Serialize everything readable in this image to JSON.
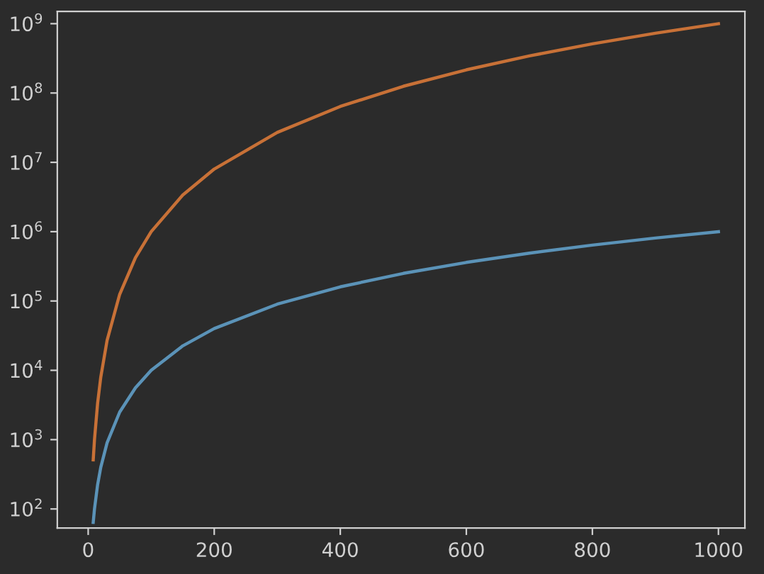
{
  "chart_data": {
    "type": "line",
    "log": "y",
    "grid": false,
    "legend": false,
    "marker": "none",
    "line_style": "solid",
    "xlim": [
      -49,
      1042
    ],
    "ylim": [
      53,
      1500000000
    ],
    "xticks": [
      0,
      200,
      400,
      600,
      800,
      1000
    ],
    "yticks": [
      {
        "value": 100,
        "label": "10$^{2}$"
      },
      {
        "value": 1000,
        "label": "10$^{3}$"
      },
      {
        "value": 10000,
        "label": "10$^{4}$"
      },
      {
        "value": 100000,
        "label": "10$^{5}$"
      },
      {
        "value": 1000000,
        "label": "10$^{6}$"
      },
      {
        "value": 10000000,
        "label": "10$^{7}$"
      },
      {
        "value": 100000000,
        "label": "10$^{8}$"
      },
      {
        "value": 1000000000,
        "label": "10$^{9}$"
      }
    ],
    "series": [
      {
        "color": "#5b93b8",
        "x": [
          8,
          10,
          15,
          20,
          30,
          50,
          75,
          100,
          150,
          200,
          300,
          400,
          500,
          600,
          700,
          800,
          900,
          1000
        ],
        "values": [
          64,
          100,
          225,
          400,
          900,
          2500,
          5600,
          10000,
          22500,
          40000,
          90000,
          160000,
          250000,
          360000,
          490000,
          640000,
          810000,
          1000000
        ]
      },
      {
        "color": "#c87137",
        "x": [
          8,
          10,
          15,
          20,
          30,
          50,
          75,
          100,
          150,
          200,
          300,
          400,
          500,
          600,
          700,
          800,
          900,
          1000
        ],
        "values": [
          512,
          1000,
          3375,
          8000,
          27000,
          125000,
          422000,
          1000000,
          3375000,
          8000000,
          27000000,
          64000000,
          125000000,
          216000000,
          343000000,
          512000000,
          729000000,
          1000000000
        ]
      }
    ]
  }
}
